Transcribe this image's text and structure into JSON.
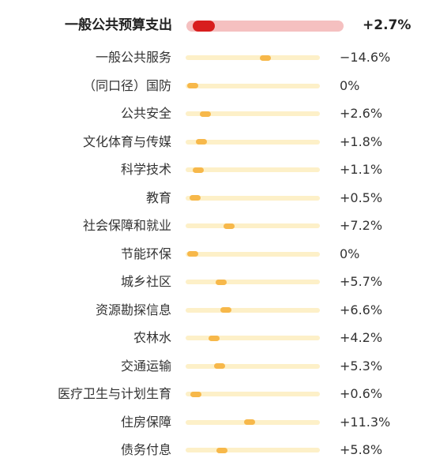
{
  "chart_data": {
    "type": "bar",
    "headline": {
      "label": "一般公共预算支出",
      "value": 2.7,
      "value_label": "+2.7%"
    },
    "categories": [
      "一般公共服务",
      "（同口径）国防",
      "公共安全",
      "文化体育与传媒",
      "科学技术",
      "教育",
      "社会保障和就业",
      "节能环保",
      "城乡社区",
      "资源勘探信息",
      "农林水",
      "交通运输",
      "医疗卫生与计划生育",
      "住房保障",
      "债务付息"
    ],
    "values": [
      -14.6,
      0,
      2.6,
      1.8,
      1.1,
      0.5,
      7.2,
      0,
      5.7,
      6.6,
      4.2,
      5.3,
      0.6,
      11.3,
      5.8
    ],
    "value_labels": [
      "−14.6%",
      "0%",
      "+2.6%",
      "+1.8%",
      "+1.1%",
      "+0.5%",
      "+7.2%",
      "0%",
      "+5.7%",
      "+6.6%",
      "+4.2%",
      "+5.3%",
      "+0.6%",
      "+11.3%",
      "+5.8%"
    ],
    "colors": {
      "headline_track": "#f5c0c0",
      "headline_marker": "#d81e1e",
      "track": "#fdf0c8",
      "marker": "#f7b84a"
    }
  }
}
